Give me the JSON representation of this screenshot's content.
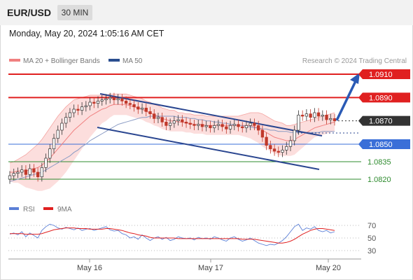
{
  "header": {
    "symbol": "EUR/USD",
    "timeframe": "30 MIN",
    "datetime": "Monday, May 20, 2024 1:05:16 AM CET"
  },
  "legend": {
    "bollinger_label": "MA 20 + Bollinger Bands",
    "ma50_label": "MA 50",
    "source": "Research © 2024 Trading Central",
    "bollinger_color": "#f08080",
    "ma50_color": "#2a4e8f"
  },
  "levels": [
    {
      "label": "1.0910",
      "value": 1.091,
      "style": "resistance",
      "color": "#e02020"
    },
    {
      "label": "1.0890",
      "value": 1.089,
      "style": "resistance",
      "color": "#e02020"
    },
    {
      "label": "1.0870",
      "value": 1.087,
      "style": "last",
      "color": "#333333"
    },
    {
      "label": "1.0850",
      "value": 1.085,
      "style": "pivot",
      "color": "#3a6fd8"
    },
    {
      "label": "1.0835",
      "value": 1.0835,
      "style": "support",
      "color": "#2e8b2e"
    },
    {
      "label": "1.0820",
      "value": 1.082,
      "style": "support",
      "color": "#2e8b2e"
    }
  ],
  "rsi": {
    "rsi_label": "RSI",
    "ma_label": "9MA",
    "rsi_color": "#5b7fd6",
    "ma_color": "#e02020",
    "levels": [
      70,
      50,
      30
    ]
  },
  "x_labels": [
    "May 16",
    "May 17",
    "May 20"
  ],
  "chart_data": {
    "type": "candlestick",
    "ylim": [
      1.0813,
      1.0925
    ],
    "price_series": [
      1.0823,
      1.0825,
      1.0826,
      1.0828,
      1.0824,
      1.0829,
      1.0826,
      1.0822,
      1.083,
      1.0838,
      1.0846,
      1.0855,
      1.0862,
      1.0868,
      1.0873,
      1.0877,
      1.088,
      1.0879,
      1.0882,
      1.0883,
      1.0886,
      1.0885,
      1.0887,
      1.0888,
      1.0889,
      1.089,
      1.0888,
      1.0889,
      1.0887,
      1.0885,
      1.0884,
      1.0882,
      1.088,
      1.0881,
      1.0878,
      1.0876,
      1.0872,
      1.0873,
      1.0869,
      1.0866,
      1.0868,
      1.087,
      1.0871,
      1.0869,
      1.0868,
      1.0867,
      1.0866,
      1.0867,
      1.0865,
      1.0866,
      1.0864,
      1.0866,
      1.0867,
      1.0865,
      1.0863,
      1.0866,
      1.0867,
      1.0865,
      1.0864,
      1.0866,
      1.0868,
      1.0866,
      1.0862,
      1.0856,
      1.0849,
      1.0846,
      1.0844,
      1.0843,
      1.0845,
      1.0848,
      1.0853,
      1.0862,
      1.0875,
      1.0874,
      1.0876,
      1.0873,
      1.0877,
      1.0874,
      1.0875,
      1.0871,
      1.0872,
      1.087
    ],
    "ma20_series": [
      1.0826,
      1.0826,
      1.0827,
      1.0827,
      1.0827,
      1.0828,
      1.0829,
      1.083,
      1.0832,
      1.0835,
      1.0838,
      1.0842,
      1.0846,
      1.085,
      1.0854,
      1.0858,
      1.0862,
      1.0865,
      1.0868,
      1.0871,
      1.0874,
      1.0876,
      1.0878,
      1.088,
      1.0881,
      1.0883,
      1.0884,
      1.0884,
      1.0884,
      1.0884,
      1.0883,
      1.0882,
      1.0881,
      1.088,
      1.0878,
      1.0877,
      1.0875,
      1.0874,
      1.0872,
      1.0871,
      1.087,
      1.087,
      1.0869,
      1.0869,
      1.0868,
      1.0868,
      1.0867,
      1.0867,
      1.0867,
      1.0866,
      1.0866,
      1.0866,
      1.0866,
      1.0866,
      1.0866,
      1.0866,
      1.0866,
      1.0866,
      1.0866,
      1.0866,
      1.0866,
      1.0865,
      1.0864,
      1.0862,
      1.086,
      1.0858,
      1.0856,
      1.0855,
      1.0854,
      1.0853,
      1.0853,
      1.0854,
      1.0856,
      1.0858,
      1.086,
      1.0862,
      1.0864,
      1.0865,
      1.0866,
      1.0867,
      1.0868,
      1.0869
    ],
    "ma50_series": [
      1.0818,
      1.0819,
      1.082,
      1.0821,
      1.0822,
      1.0823,
      1.0824,
      1.0825,
      1.0826,
      1.0828,
      1.083,
      1.0832,
      1.0834,
      1.0836,
      1.0838,
      1.084,
      1.0843,
      1.0845,
      1.0848,
      1.085,
      1.0853,
      1.0855,
      1.0857,
      1.0859,
      1.0861,
      1.0863,
      1.0865,
      1.0867,
      1.0868,
      1.0869,
      1.087,
      1.0871,
      1.0872,
      1.0873,
      1.0873,
      1.0874,
      1.0874,
      1.0874,
      1.0874,
      1.0874,
      1.0874,
      1.0874,
      1.0873,
      1.0873,
      1.0873,
      1.0872,
      1.0872,
      1.0871,
      1.0871,
      1.087,
      1.087,
      1.0869,
      1.0869,
      1.0868,
      1.0868,
      1.0867,
      1.0867,
      1.0866,
      1.0866,
      1.0865,
      1.0865,
      1.0864,
      1.0864,
      1.0863,
      1.0863,
      1.0862,
      1.0862,
      1.0861,
      1.0861,
      1.0861,
      1.086,
      1.086,
      1.086,
      1.086,
      1.086,
      1.086,
      1.086,
      1.086,
      1.0861,
      1.0861,
      1.0861,
      1.0861
    ],
    "band_width_series": [
      0.0008,
      0.0009,
      0.001,
      0.0012,
      0.0014,
      0.0016,
      0.0018,
      0.002,
      0.0022,
      0.0024,
      0.0026,
      0.0027,
      0.0028,
      0.0028,
      0.0028,
      0.0027,
      0.0026,
      0.0024,
      0.0022,
      0.002,
      0.0018,
      0.0016,
      0.0014,
      0.0012,
      0.0011,
      0.001,
      0.0009,
      0.0009,
      0.0009,
      0.0009,
      0.0009,
      0.0009,
      0.0009,
      0.0009,
      0.0009,
      0.0009,
      0.0009,
      0.0009,
      0.0009,
      0.0009,
      0.0009,
      0.0009,
      0.0008,
      0.0008,
      0.0008,
      0.0008,
      0.0008,
      0.0008,
      0.0008,
      0.0008,
      0.0008,
      0.0008,
      0.0008,
      0.0008,
      0.0008,
      0.0008,
      0.0008,
      0.0008,
      0.0009,
      0.001,
      0.0011,
      0.0012,
      0.0013,
      0.0014,
      0.0014,
      0.0014,
      0.0014,
      0.0014,
      0.0014,
      0.0013,
      0.0013,
      0.0013,
      0.0012,
      0.0011,
      0.001,
      0.0009,
      0.0008,
      0.0008,
      0.0008,
      0.0008,
      0.0008,
      0.0008
    ],
    "rsi_series": [
      56,
      58,
      55,
      60,
      52,
      58,
      54,
      50,
      62,
      68,
      72,
      70,
      66,
      64,
      67,
      65,
      63,
      66,
      62,
      64,
      65,
      62,
      64,
      66,
      68,
      63,
      61,
      62,
      57,
      55,
      50,
      52,
      48,
      55,
      50,
      46,
      50,
      52,
      48,
      51,
      46,
      48,
      52,
      50,
      49,
      50,
      47,
      51,
      49,
      50,
      48,
      52,
      50,
      47,
      45,
      50,
      52,
      48,
      45,
      47,
      50,
      46,
      42,
      40,
      38,
      40,
      39,
      42,
      46,
      52,
      60,
      68,
      72,
      62,
      66,
      64,
      68,
      62,
      60,
      62,
      58,
      60
    ],
    "rsi_ma_series": [
      57,
      57,
      57,
      57,
      56,
      56,
      56,
      56,
      57,
      59,
      61,
      63,
      64,
      65,
      66,
      66,
      66,
      65,
      65,
      65,
      64,
      64,
      64,
      64,
      65,
      65,
      64,
      63,
      62,
      60,
      58,
      57,
      55,
      54,
      53,
      51,
      50,
      50,
      50,
      50,
      50,
      50,
      49,
      49,
      49,
      49,
      49,
      49,
      49,
      49,
      49,
      49,
      49,
      49,
      49,
      49,
      49,
      49,
      48,
      48,
      48,
      48,
      47,
      46,
      45,
      44,
      43,
      42,
      42,
      43,
      45,
      48,
      52,
      56,
      59,
      62,
      64,
      65,
      65,
      64,
      63,
      62
    ]
  }
}
